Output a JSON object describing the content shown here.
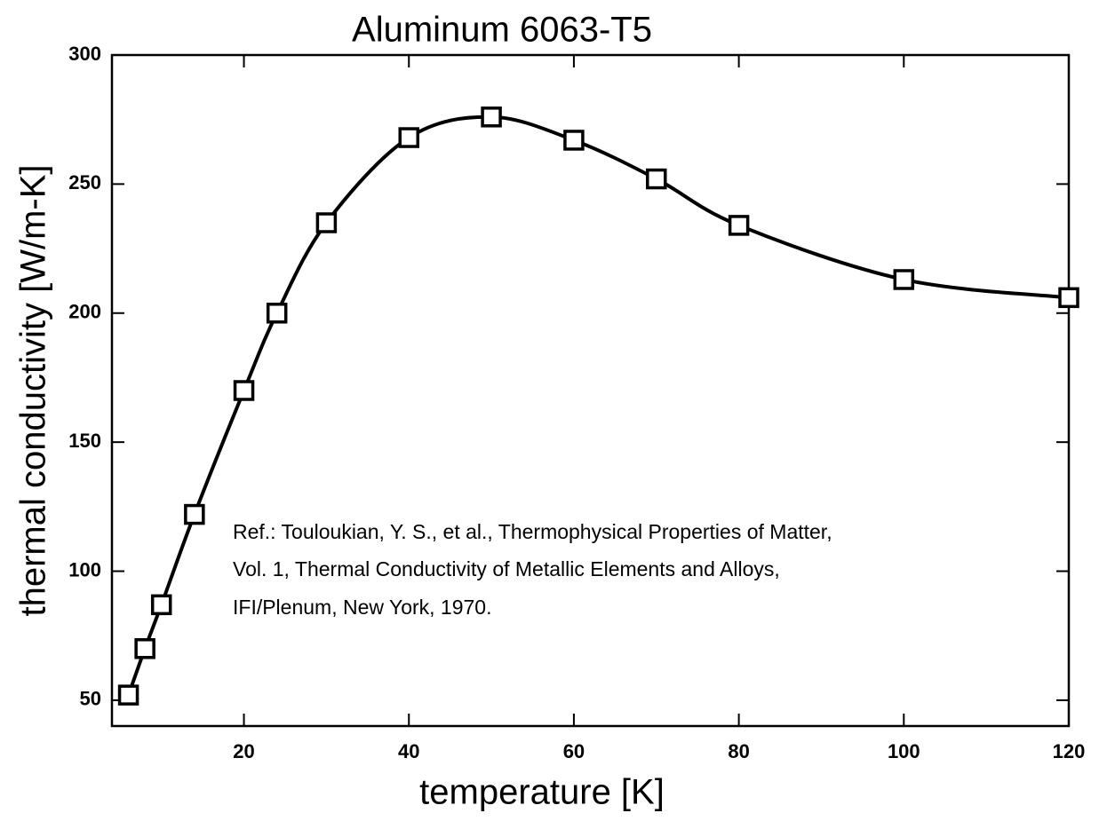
{
  "chart_data": {
    "type": "scatter",
    "title": "Aluminum 6063-T5",
    "x_label": "temperature [K]",
    "y_label": "thermal conductivity [W/m-K]",
    "annotation": [
      "Ref.: Touloukian, Y. S., et al., Thermophysical Properties of Matter,",
      "Vol. 1, Thermal Conductivity of Metallic Elements and Alloys,",
      "IFI/Plenum, New York, 1970."
    ],
    "x": [
      6,
      8,
      10,
      14,
      20,
      24,
      30,
      40,
      50,
      60,
      70,
      80,
      100,
      120
    ],
    "values": [
      52,
      70,
      87,
      122,
      170,
      200,
      235,
      268,
      276,
      267,
      252,
      234,
      213,
      206
    ],
    "color": "#000000",
    "xlim": [
      4,
      120
    ],
    "xticks": [
      20,
      40,
      60,
      80,
      100,
      120
    ],
    "ylim": [
      40,
      300
    ],
    "yticks": [
      50,
      100,
      150,
      200,
      250,
      300
    ]
  }
}
